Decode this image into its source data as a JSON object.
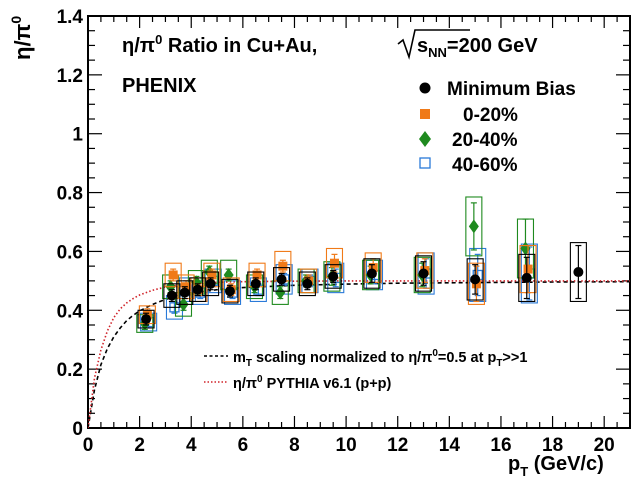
{
  "chart_data": {
    "type": "scatter",
    "title": {
      "main": "η/π",
      "sup": "0",
      "rest": " Ratio in Cu+Au, ",
      "sqrt": "s",
      "sqrt_sub": "NN",
      "energy": "=200 GeV"
    },
    "experiment": "PHENIX",
    "ylabel": {
      "main": "η/π",
      "sup": "0"
    },
    "xlabel": {
      "p": "p",
      "sub": "T",
      "rest": " (GeV/c)"
    },
    "xlim": [
      0,
      21
    ],
    "ylim": [
      0,
      1.4
    ],
    "xticks": [
      0,
      2,
      4,
      6,
      8,
      10,
      12,
      14,
      16,
      18,
      20
    ],
    "yticks": [
      0,
      0.2,
      0.4,
      0.6,
      0.8,
      1,
      1.2,
      1.4
    ],
    "ytick_labels": [
      "0",
      "0.2",
      "0.4",
      "0.6",
      "0.8",
      "1",
      "1.2",
      "1.4"
    ],
    "grid": false,
    "legend_position": "top-right",
    "series": [
      {
        "name": "Minimum Bias",
        "marker": "circle",
        "color": "#000000",
        "x": [
          2.25,
          3.25,
          3.75,
          4.25,
          4.75,
          5.5,
          6.5,
          7.5,
          8.5,
          9.5,
          11,
          13,
          15,
          17,
          19
        ],
        "y": [
          0.37,
          0.45,
          0.46,
          0.47,
          0.49,
          0.465,
          0.49,
          0.505,
          0.49,
          0.515,
          0.525,
          0.525,
          0.505,
          0.51,
          0.53
        ],
        "stat": [
          0.02,
          0.02,
          0.02,
          0.02,
          0.02,
          0.02,
          0.02,
          0.02,
          0.02,
          0.02,
          0.03,
          0.04,
          0.05,
          0.07,
          0.09
        ],
        "sys": [
          0.03,
          0.04,
          0.04,
          0.04,
          0.04,
          0.04,
          0.04,
          0.04,
          0.04,
          0.04,
          0.05,
          0.06,
          0.07,
          0.08,
          0.1
        ]
      },
      {
        "name": "0-20%",
        "marker": "square",
        "color": "#f07a18",
        "x": [
          2.3,
          3.3,
          3.8,
          4.3,
          4.8,
          5.55,
          6.55,
          7.55,
          8.55,
          9.55,
          11.05,
          13.05,
          15.05,
          17.05
        ],
        "y": [
          0.385,
          0.52,
          0.48,
          0.47,
          0.52,
          0.47,
          0.52,
          0.55,
          0.5,
          0.56,
          0.545,
          0.535,
          0.49,
          0.54
        ],
        "stat": [
          0.02,
          0.02,
          0.02,
          0.02,
          0.02,
          0.02,
          0.02,
          0.02,
          0.02,
          0.03,
          0.03,
          0.04,
          0.06,
          0.08
        ],
        "sys": [
          0.03,
          0.04,
          0.04,
          0.04,
          0.04,
          0.04,
          0.04,
          0.05,
          0.04,
          0.05,
          0.05,
          0.06,
          0.07,
          0.08
        ]
      },
      {
        "name": "20-40%",
        "marker": "diamond",
        "color": "#1f8a1f",
        "x": [
          2.2,
          3.2,
          3.7,
          4.2,
          4.7,
          5.45,
          6.45,
          7.45,
          8.45,
          9.45,
          10.95,
          12.95,
          14.95,
          16.95
        ],
        "y": [
          0.355,
          0.48,
          0.42,
          0.495,
          0.53,
          0.52,
          0.48,
          0.46,
          0.5,
          0.515,
          0.52,
          0.52,
          0.685,
          0.61
        ],
        "stat": [
          0.02,
          0.02,
          0.02,
          0.02,
          0.02,
          0.02,
          0.02,
          0.02,
          0.02,
          0.03,
          0.03,
          0.04,
          0.08,
          0.1
        ],
        "sys": [
          0.03,
          0.04,
          0.04,
          0.04,
          0.04,
          0.05,
          0.04,
          0.04,
          0.04,
          0.05,
          0.05,
          0.06,
          0.1,
          0.1
        ]
      },
      {
        "name": "40-60%",
        "marker": "open-square",
        "color": "#2a7ad8",
        "x": [
          2.35,
          3.35,
          3.85,
          4.35,
          4.85,
          5.6,
          6.6,
          7.6,
          8.6,
          9.6,
          11.1,
          13.1,
          15.1,
          17.1
        ],
        "y": [
          0.36,
          0.41,
          0.47,
          0.46,
          0.5,
          0.46,
          0.47,
          0.505,
          0.5,
          0.51,
          0.52,
          0.525,
          0.52,
          0.525
        ],
        "stat": [
          0.02,
          0.02,
          0.02,
          0.02,
          0.02,
          0.02,
          0.02,
          0.02,
          0.02,
          0.03,
          0.03,
          0.05,
          0.07,
          0.09
        ],
        "sys": [
          0.03,
          0.04,
          0.04,
          0.04,
          0.04,
          0.04,
          0.04,
          0.05,
          0.04,
          0.05,
          0.05,
          0.07,
          0.09,
          0.1
        ]
      }
    ],
    "curves": [
      {
        "name": "m_T scaling normalized to η/π0=0.5 at p_T>>1",
        "style": "dashed",
        "color": "#000000",
        "x": [
          0.0,
          0.25,
          0.5,
          0.75,
          1.0,
          1.25,
          1.5,
          1.75,
          2.0,
          2.5,
          3,
          3.5,
          4,
          5,
          6,
          8,
          10,
          12,
          15,
          18,
          21
        ],
        "y": [
          0.0,
          0.13,
          0.215,
          0.27,
          0.31,
          0.34,
          0.365,
          0.383,
          0.398,
          0.42,
          0.437,
          0.449,
          0.458,
          0.47,
          0.477,
          0.485,
          0.489,
          0.492,
          0.494,
          0.496,
          0.497
        ]
      },
      {
        "name": "η/π0 PYTHIA v6.1 (p+p)",
        "style": "dotted",
        "color": "#d0232a",
        "x": [
          0.0,
          0.25,
          0.5,
          0.75,
          1.0,
          1.25,
          1.5,
          1.75,
          2.0,
          2.5,
          3,
          3.5,
          4,
          5,
          6,
          8,
          10,
          12,
          15,
          18,
          21
        ],
        "y": [
          0.0,
          0.17,
          0.265,
          0.33,
          0.375,
          0.405,
          0.425,
          0.44,
          0.452,
          0.468,
          0.479,
          0.486,
          0.49,
          0.495,
          0.497,
          0.499,
          0.5,
          0.5,
          0.5,
          0.5,
          0.5
        ]
      }
    ],
    "curve_legend": [
      {
        "parts": [
          [
            "m",
            ""
          ],
          [
            "T",
            "sub"
          ],
          [
            " scaling normalized to η/π",
            ""
          ],
          [
            "0",
            "sup"
          ],
          [
            "=0.5 at p",
            ""
          ],
          [
            "T",
            "sub"
          ],
          [
            ">>1",
            ""
          ]
        ]
      },
      {
        "parts": [
          [
            "η/π",
            ""
          ],
          [
            "0",
            "sup"
          ],
          [
            " PYTHIA v6.1 (p+p)",
            ""
          ]
        ]
      }
    ]
  }
}
